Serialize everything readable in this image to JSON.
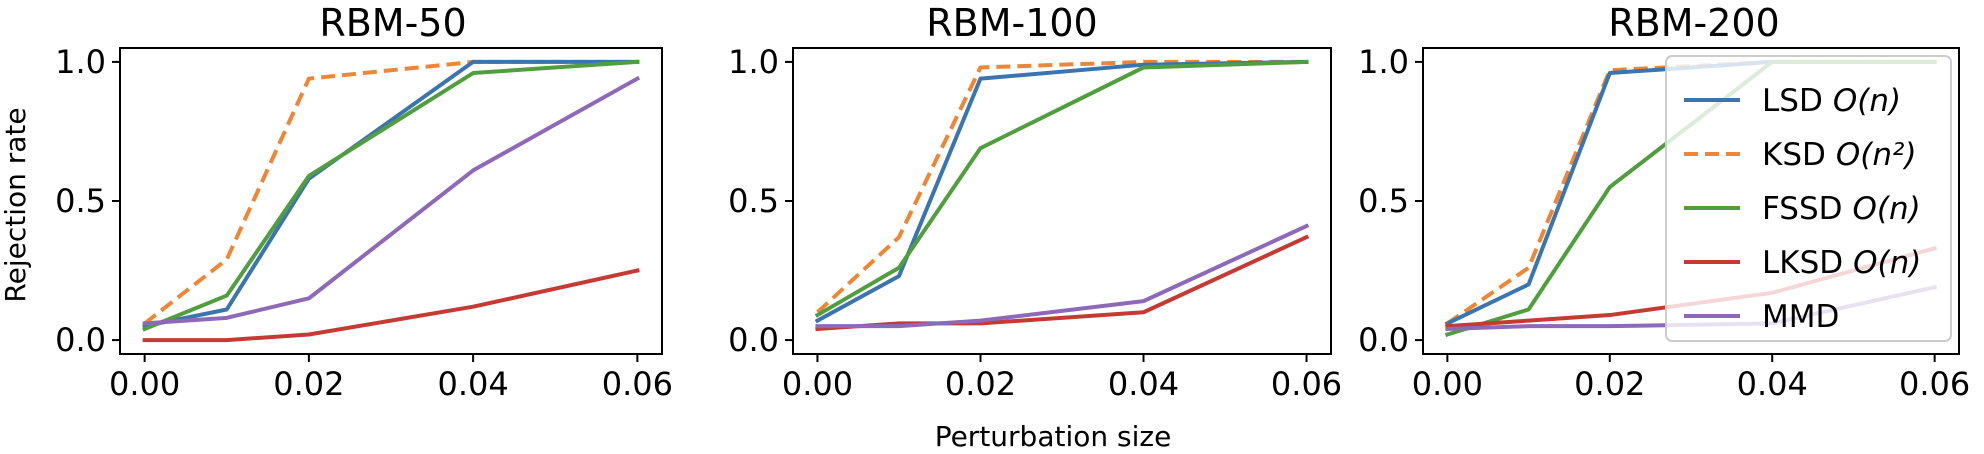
{
  "chart_data": [
    {
      "type": "line",
      "title": "RBM-50",
      "xlabel": "",
      "ylabel": "Rejection rate",
      "x": [
        0.0,
        0.01,
        0.02,
        0.04,
        0.06
      ],
      "xticks": [
        "0.00",
        "0.02",
        "0.04",
        "0.06"
      ],
      "yticks": [
        "0.0",
        "0.5",
        "1.0"
      ],
      "xlim": [
        -0.003,
        0.063
      ],
      "ylim": [
        -0.05,
        1.05
      ],
      "series": [
        {
          "name": "LSD",
          "values": [
            0.05,
            0.11,
            0.58,
            1.0,
            1.0
          ]
        },
        {
          "name": "KSD",
          "values": [
            0.06,
            0.29,
            0.94,
            1.0,
            1.0
          ]
        },
        {
          "name": "FSSD",
          "values": [
            0.04,
            0.16,
            0.59,
            0.96,
            1.0
          ]
        },
        {
          "name": "LKSD",
          "values": [
            0.0,
            0.0,
            0.02,
            0.12,
            0.25
          ]
        },
        {
          "name": "MMD",
          "values": [
            0.06,
            0.08,
            0.15,
            0.61,
            0.94
          ]
        }
      ]
    },
    {
      "type": "line",
      "title": "RBM-100",
      "xlabel": "Perturbation size",
      "ylabel": "",
      "x": [
        0.0,
        0.01,
        0.02,
        0.04,
        0.06
      ],
      "xticks": [
        "0.00",
        "0.02",
        "0.04",
        "0.06"
      ],
      "yticks": [
        "0.0",
        "0.5",
        "1.0"
      ],
      "xlim": [
        -0.003,
        0.063
      ],
      "ylim": [
        -0.05,
        1.05
      ],
      "series": [
        {
          "name": "LSD",
          "values": [
            0.07,
            0.23,
            0.94,
            0.99,
            1.0
          ]
        },
        {
          "name": "KSD",
          "values": [
            0.1,
            0.37,
            0.98,
            1.0,
            1.0
          ]
        },
        {
          "name": "FSSD",
          "values": [
            0.09,
            0.26,
            0.69,
            0.98,
            1.0
          ]
        },
        {
          "name": "LKSD",
          "values": [
            0.04,
            0.06,
            0.06,
            0.1,
            0.37
          ]
        },
        {
          "name": "MMD",
          "values": [
            0.05,
            0.05,
            0.07,
            0.14,
            0.41
          ]
        }
      ]
    },
    {
      "type": "line",
      "title": "RBM-200",
      "xlabel": "",
      "ylabel": "",
      "x": [
        0.0,
        0.01,
        0.02,
        0.04,
        0.06
      ],
      "xticks": [
        "0.00",
        "0.02",
        "0.04",
        "0.06"
      ],
      "yticks": [
        "0.0",
        "0.5",
        "1.0"
      ],
      "xlim": [
        -0.003,
        0.063
      ],
      "ylim": [
        -0.05,
        1.05
      ],
      "series": [
        {
          "name": "LSD",
          "values": [
            0.06,
            0.2,
            0.96,
            1.0,
            1.0
          ]
        },
        {
          "name": "KSD",
          "values": [
            0.06,
            0.26,
            0.97,
            1.0,
            1.0
          ]
        },
        {
          "name": "FSSD",
          "values": [
            0.02,
            0.11,
            0.55,
            1.0,
            1.0
          ]
        },
        {
          "name": "LKSD",
          "values": [
            0.05,
            0.07,
            0.09,
            0.17,
            0.33
          ]
        },
        {
          "name": "MMD",
          "values": [
            0.04,
            0.05,
            0.05,
            0.06,
            0.19
          ]
        }
      ]
    }
  ],
  "legend": {
    "position": "right",
    "entries": [
      {
        "series": "LSD",
        "label": "LSD",
        "complexity": "O(n)",
        "color": "#3b75af",
        "dashed": false
      },
      {
        "series": "KSD",
        "label": "KSD",
        "complexity": "O(n²)",
        "color": "#ef8636",
        "dashed": true
      },
      {
        "series": "FSSD",
        "label": "FSSD",
        "complexity": "O(n)",
        "color": "#519e3e",
        "dashed": false
      },
      {
        "series": "LKSD",
        "label": "LKSD",
        "complexity": "O(n)",
        "color": "#c53a32",
        "dashed": false
      },
      {
        "series": "MMD",
        "label": "MMD",
        "complexity": "",
        "color": "#8d69b8",
        "dashed": false
      }
    ]
  },
  "colors": {
    "LSD": "#3b75af",
    "KSD": "#ef8636",
    "FSSD": "#519e3e",
    "LKSD": "#c53a32",
    "MMD": "#8d69b8"
  }
}
